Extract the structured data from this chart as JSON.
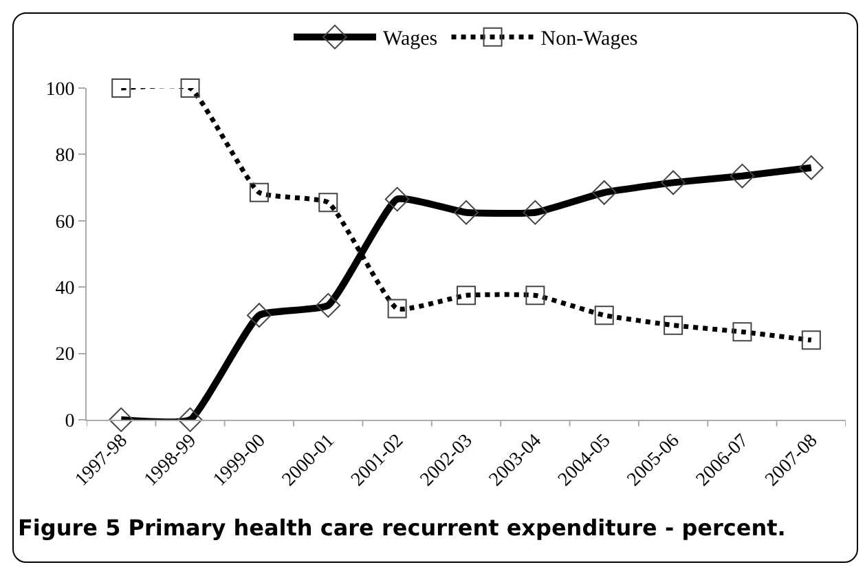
{
  "chart_data": {
    "type": "line",
    "categories": [
      "1997-98",
      "1998-99",
      "1999-00",
      "2000-01",
      "2001-02",
      "2002-03",
      "2003-04",
      "2004-05",
      "2005-06",
      "2006-07",
      "2007-08"
    ],
    "series": [
      {
        "name": "Wages",
        "color": "#000000",
        "marker": "diamond",
        "line_style": "solid",
        "values": [
          0,
          0,
          31.5,
          34.5,
          66.5,
          62.5,
          62.5,
          68.5,
          71.5,
          73.5,
          76
        ]
      },
      {
        "name": "Non-Wages",
        "color": "#000000",
        "marker": "square",
        "line_style": "dotted",
        "values": [
          100,
          100,
          68.5,
          65.5,
          33.5,
          37.5,
          37.5,
          31.5,
          28.5,
          26.5,
          24
        ]
      }
    ],
    "ylim": [
      0,
      100
    ],
    "yticks": [
      0,
      20,
      40,
      60,
      80,
      100
    ],
    "grid": false,
    "legend": "top",
    "annotations": [
      "Figure 5 Primary health care recurrent expenditure - percent."
    ]
  }
}
